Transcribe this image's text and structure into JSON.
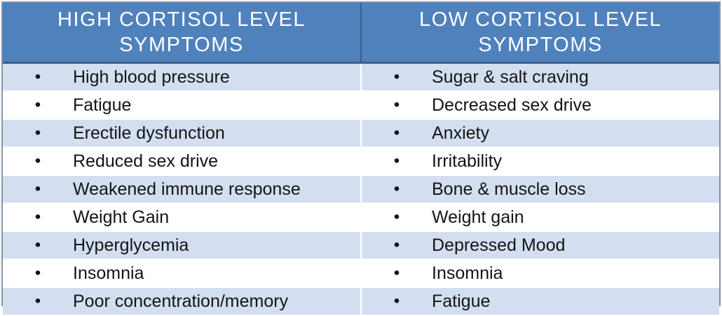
{
  "table": {
    "headers": {
      "high": [
        "HIGH CORTISOL LEVEL",
        "SYMPTOMS"
      ],
      "low": [
        "LOW CORTISOL LEVEL",
        "SYMPTOMS"
      ]
    },
    "bullet": "•",
    "rows": [
      {
        "high": "High blood pressure",
        "low": "Sugar & salt craving"
      },
      {
        "high": "Fatigue",
        "low": "Decreased sex drive"
      },
      {
        "high": "Erectile dysfunction",
        "low": "Anxiety"
      },
      {
        "high": "Reduced sex drive",
        "low": "Irritability"
      },
      {
        "high": "Weakened immune response",
        "low": "Bone & muscle loss"
      },
      {
        "high": "Weight Gain",
        "low": "Weight gain"
      },
      {
        "high": "Hyperglycemia",
        "low": "Depressed Mood"
      },
      {
        "high": "Insomnia",
        "low": "Insomnia"
      },
      {
        "high": "Poor concentration/memory",
        "low": "Fatigue"
      }
    ]
  }
}
